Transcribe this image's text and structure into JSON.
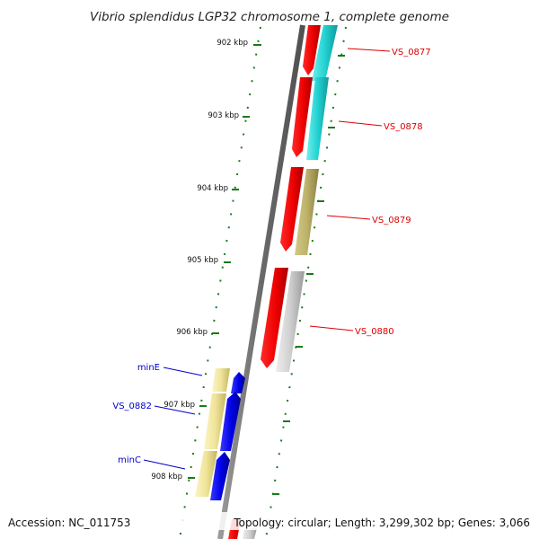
{
  "title": "Vibrio splendidus LGP32 chromosome 1, complete genome",
  "footer": {
    "accession": "Accession: NC_011753",
    "summary": "Topology: circular; Length: 3,299,302 bp; Genes: 3,066"
  },
  "ticks": [
    "902 kbp",
    "903 kbp",
    "904 kbp",
    "905 kbp",
    "906 kbp",
    "907 kbp",
    "908 kbp"
  ],
  "genes": {
    "vs0877": "VS_0877",
    "vs0878": "VS_0878",
    "vs0879": "VS_0879",
    "vs0880": "VS_0880",
    "minE": "minE",
    "vs0882": "VS_0882",
    "minC": "minC"
  },
  "colors": {
    "plus_strand_label": "#dd0000",
    "minus_strand_label": "#0000cc",
    "forward_cds": "#ff0000",
    "reverse_cds": "#0000ee",
    "tick": "#1a7a1a",
    "axis": "#777777"
  }
}
